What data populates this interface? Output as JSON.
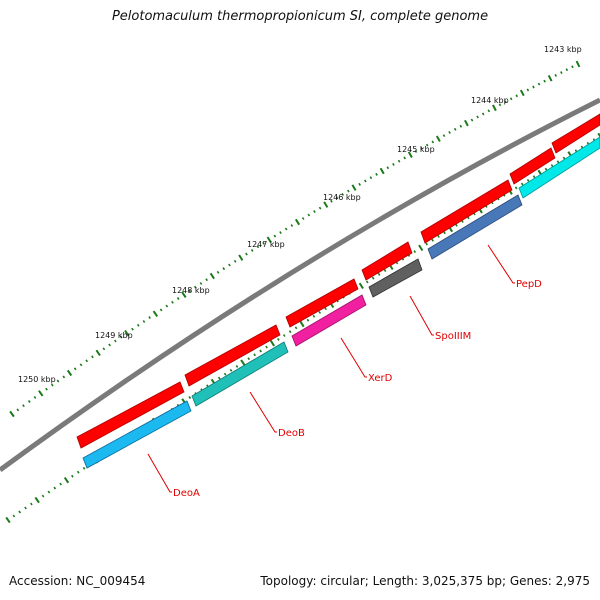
{
  "title": "Pelotomaculum thermopropionicum SI, complete genome",
  "footer": {
    "accession": "Accession: NC_009454",
    "summary": "Topology: circular; Length: 3,025,375 bp; Genes: 2,975"
  },
  "colors": {
    "backbone": "#808080",
    "tick": "#1a7a1a",
    "label": "#e00000",
    "gene_forward": "#ff0000",
    "deoA": "#1cb8f0",
    "deoB": "#20c0b8",
    "xerD": "#f020a0",
    "spoIIM": "#606060",
    "pepD": "#4878b8",
    "last": "#00e8e8"
  },
  "scale_labels": [
    "1243 kbp",
    "1244 kbp",
    "1245 kbp",
    "1246 kbp",
    "1247 kbp",
    "1248 kbp",
    "1249 kbp",
    "1250 kbp"
  ],
  "gene_labels": [
    "DeoA",
    "DeoB",
    "XerD",
    "SpoIIIM",
    "PepD"
  ]
}
